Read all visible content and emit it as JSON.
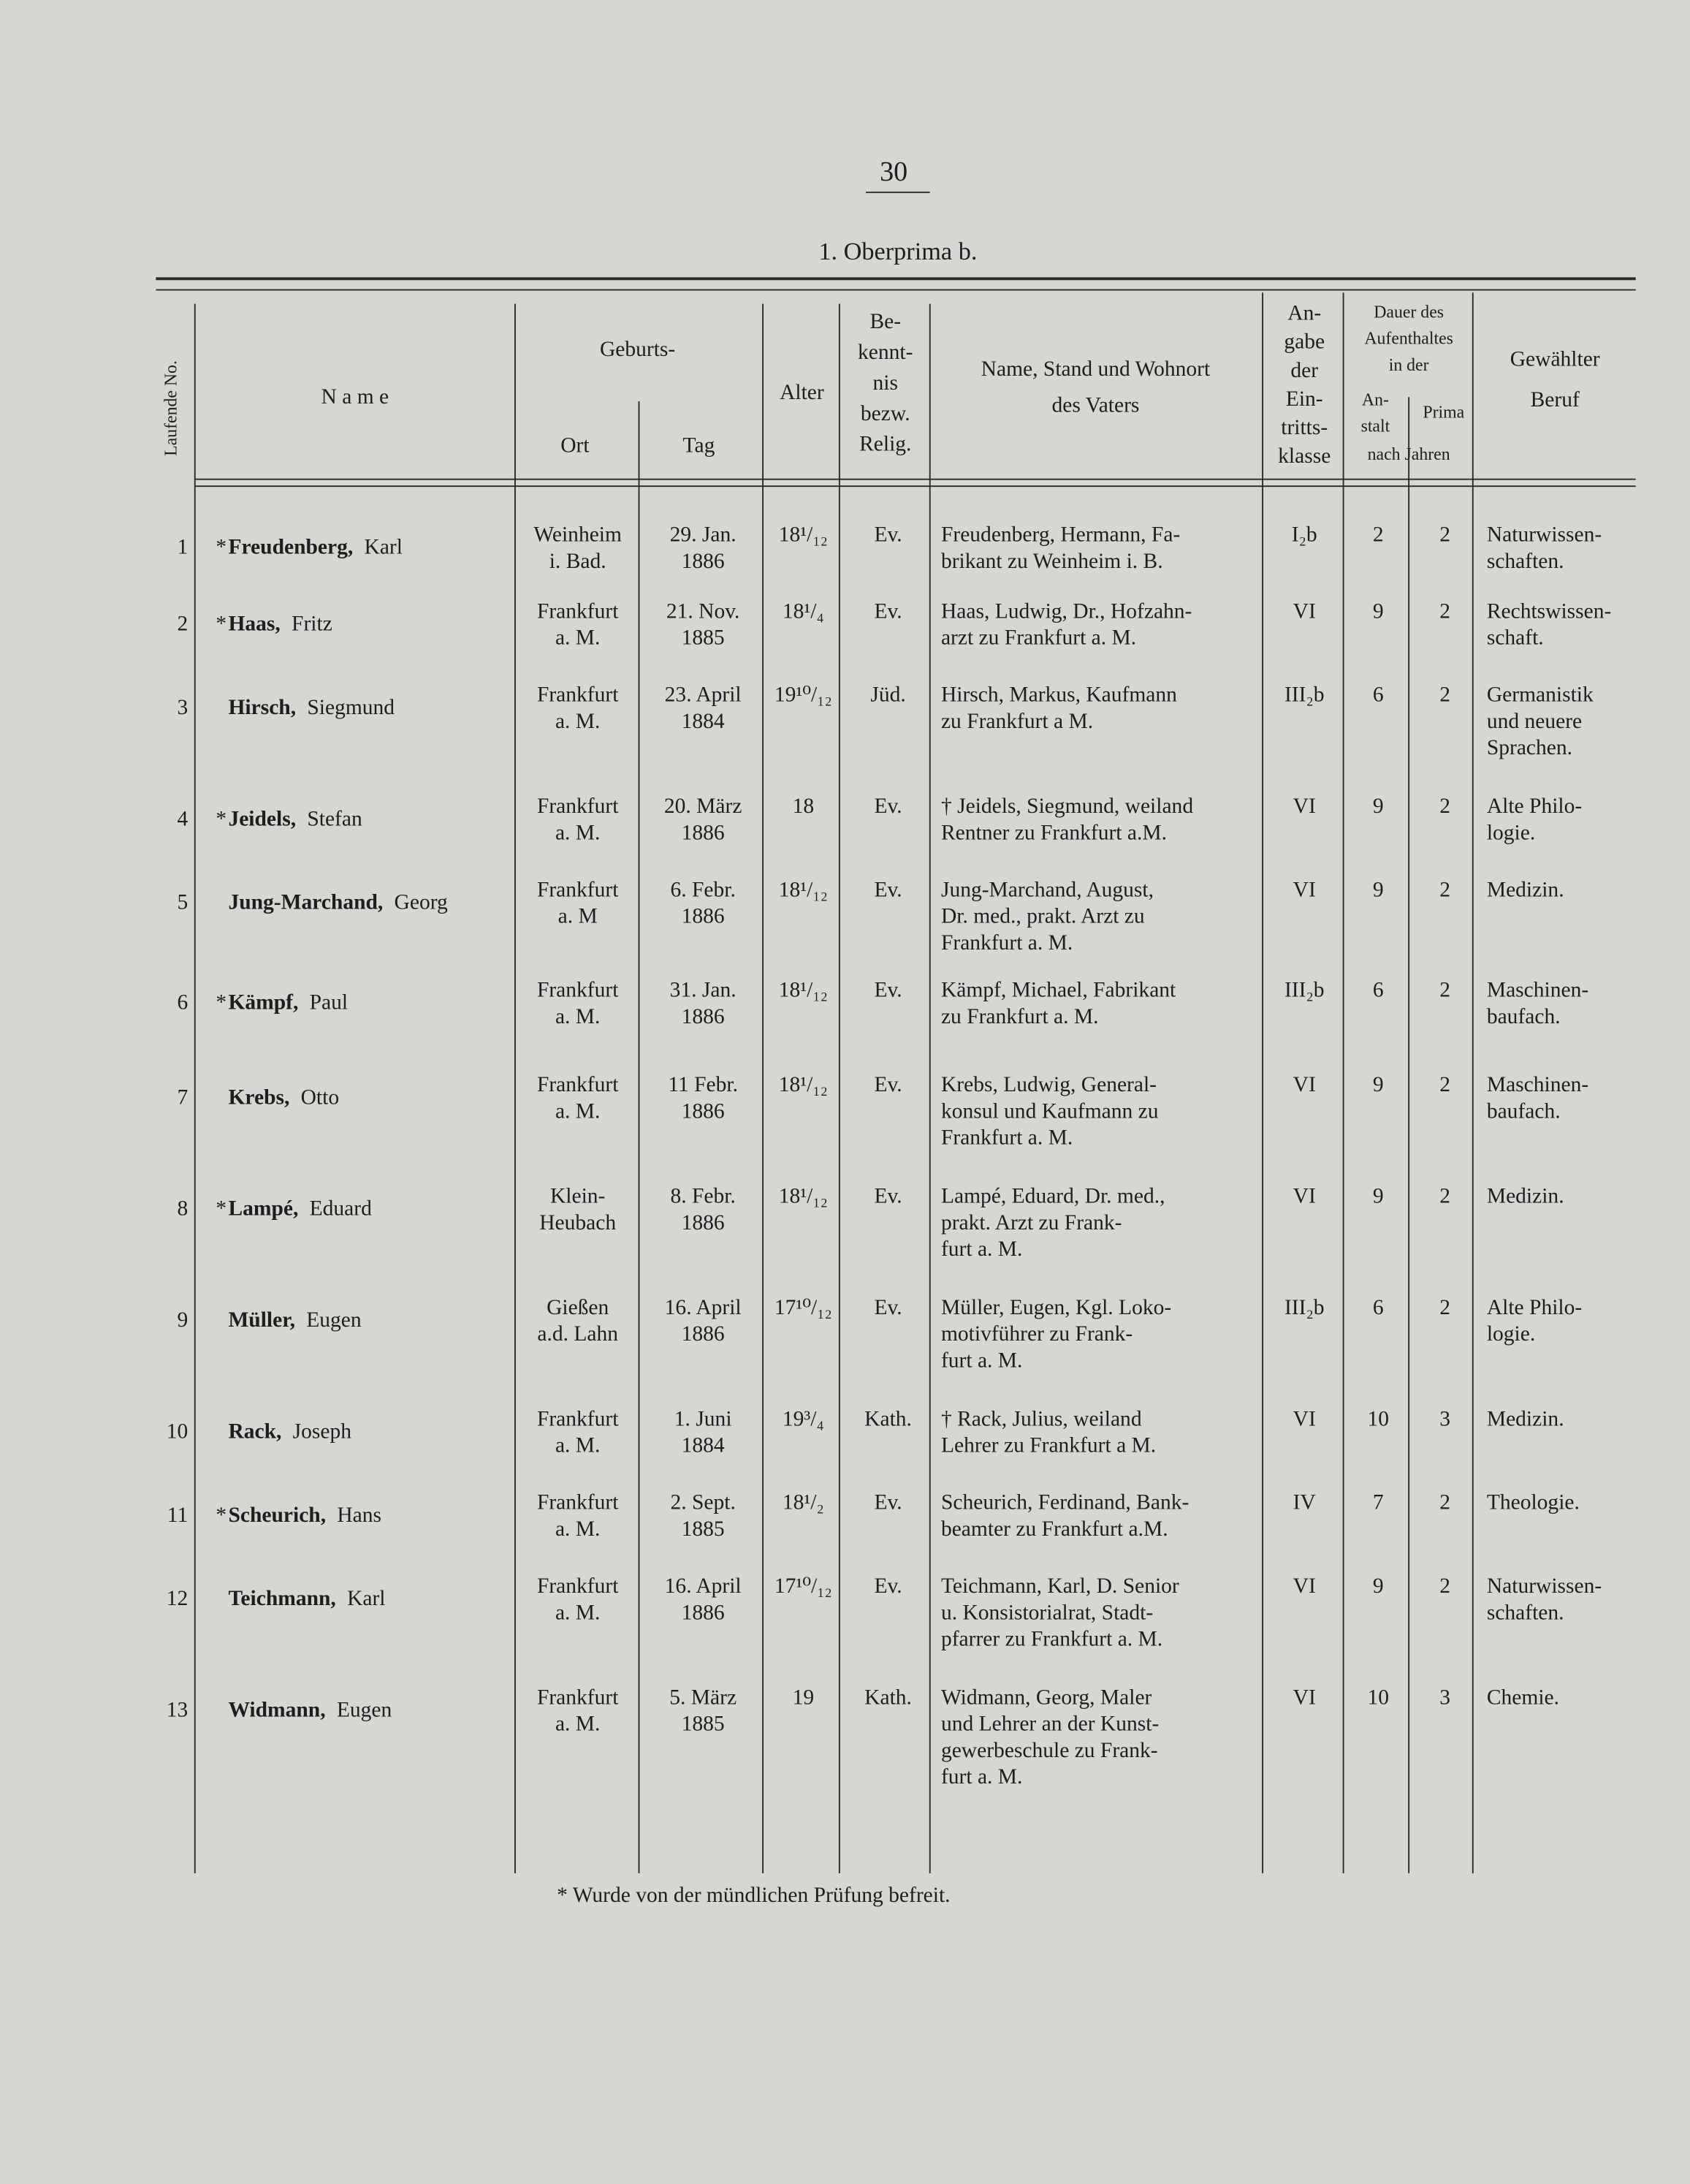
{
  "header": {
    "page_number": "30",
    "title": "1. Oberprima b."
  },
  "table": {
    "headers": {
      "no": "Laufende No.",
      "name": "N a m e",
      "birth": "Geburts-",
      "place": "Ort",
      "day": "Tag",
      "age": "Alter",
      "religion": [
        "Be-",
        "kennt-",
        "nis",
        "bezw.",
        "Relig."
      ],
      "father": [
        "Name, Stand und Wohnort",
        "des Vaters"
      ],
      "entry": [
        "An-",
        "gabe",
        "der",
        "Ein-",
        "tritts-",
        "klasse"
      ],
      "stay": [
        "Dauer des",
        "Aufenthaltes",
        "in der"
      ],
      "school": [
        "An-",
        "stalt"
      ],
      "prima": "Prima",
      "years": "nach Jahren",
      "career": [
        "Gewählter",
        "Beruf"
      ]
    },
    "rows": [
      {
        "no": "1",
        "mark": "*",
        "surname": "Freudenberg,",
        "given": "Karl",
        "place": [
          "Weinheim",
          "i. Bad."
        ],
        "day": [
          "29. Jan.",
          "1886"
        ],
        "age": "18¹/₁₂",
        "religion": "Ev.",
        "father": [
          "Freudenberg, Hermann, Fa-",
          "brikant zu Weinheim i. B."
        ],
        "entry": "I₂b",
        "school": "2",
        "prima": "2",
        "career": [
          "Naturwissen-",
          "schaften."
        ]
      },
      {
        "no": "2",
        "mark": "*",
        "surname": "Haas,",
        "given": "Fritz",
        "place": [
          "Frankfurt",
          "a. M."
        ],
        "day": [
          "21. Nov.",
          "1885"
        ],
        "age": "18¹/₄",
        "religion": "Ev.",
        "father": [
          "Haas, Ludwig, Dr., Hofzahn-",
          "arzt zu Frankfurt a. M."
        ],
        "entry": "VI",
        "school": "9",
        "prima": "2",
        "career": [
          "Rechtswissen-",
          "schaft."
        ]
      },
      {
        "no": "3",
        "surname": "Hirsch,",
        "given": "Siegmund",
        "place": [
          "Frankfurt",
          "a. M."
        ],
        "day": [
          "23. April",
          "1884"
        ],
        "age": "19¹⁰/₁₂",
        "religion": "Jüd.",
        "father": [
          "Hirsch, Markus, Kaufmann",
          "zu Frankfurt a M."
        ],
        "entry": "III₂b",
        "school": "6",
        "prima": "2",
        "career": [
          "Germanistik",
          "und neuere",
          "Sprachen."
        ]
      },
      {
        "no": "4",
        "mark": "*",
        "surname": "Jeidels,",
        "given": "Stefan",
        "place": [
          "Frankfurt",
          "a. M."
        ],
        "day": [
          "20. März",
          "1886"
        ],
        "age": "18",
        "religion": "Ev.",
        "father": [
          "† Jeidels, Siegmund, weiland",
          "Rentner zu Frankfurt a.M."
        ],
        "entry": "VI",
        "school": "9",
        "prima": "2",
        "career": [
          "Alte Philo-",
          "logie."
        ]
      },
      {
        "no": "5",
        "surname": "Jung-Marchand,",
        "given": "Georg",
        "place": [
          "Frankfurt",
          "a. M"
        ],
        "day": [
          "6. Febr.",
          "1886"
        ],
        "age": "18¹/₁₂",
        "religion": "Ev.",
        "father": [
          "Jung-Marchand, August,",
          "Dr. med., prakt. Arzt zu",
          "Frankfurt a. M."
        ],
        "entry": "VI",
        "school": "9",
        "prima": "2",
        "career": [
          "Medizin."
        ]
      },
      {
        "no": "6",
        "mark": "*",
        "surname": "Kämpf,",
        "given": "Paul",
        "place": [
          "Frankfurt",
          "a. M."
        ],
        "day": [
          "31. Jan.",
          "1886"
        ],
        "age": "18¹/₁₂",
        "religion": "Ev.",
        "father": [
          "Kämpf, Michael, Fabrikant",
          "zu Frankfurt a. M."
        ],
        "entry": "III₂b",
        "school": "6",
        "prima": "2",
        "career": [
          "Maschinen-",
          "baufach."
        ]
      },
      {
        "no": "7",
        "surname": "Krebs,",
        "given": "Otto",
        "place": [
          "Frankfurt",
          "a. M."
        ],
        "day": [
          "11 Febr.",
          "1886"
        ],
        "age": "18¹/₁₂",
        "religion": "Ev.",
        "father": [
          "Krebs, Ludwig, General-",
          "konsul und Kaufmann zu",
          "Frankfurt a. M."
        ],
        "entry": "VI",
        "school": "9",
        "prima": "2",
        "career": [
          "Maschinen-",
          "baufach."
        ]
      },
      {
        "no": "8",
        "mark": "*",
        "surname": "Lampé,",
        "given": "Eduard",
        "place": [
          "Klein-",
          "Heubach"
        ],
        "day": [
          "8. Febr.",
          "1886"
        ],
        "age": "18¹/₁₂",
        "religion": "Ev.",
        "father": [
          "Lampé, Eduard, Dr. med.,",
          "prakt. Arzt zu Frank-",
          "furt a. M."
        ],
        "entry": "VI",
        "school": "9",
        "prima": "2",
        "career": [
          "Medizin."
        ]
      },
      {
        "no": "9",
        "surname": "Müller,",
        "given": "Eugen",
        "place": [
          "Gießen",
          "a.d. Lahn"
        ],
        "day": [
          "16. April",
          "1886"
        ],
        "age": "17¹⁰/₁₂",
        "religion": "Ev.",
        "father": [
          "Müller, Eugen, Kgl. Loko-",
          "motivführer zu Frank-",
          "furt a. M."
        ],
        "entry": "III₂b",
        "school": "6",
        "prima": "2",
        "career": [
          "Alte Philo-",
          "logie."
        ]
      },
      {
        "no": "10",
        "surname": "Rack,",
        "given": "Joseph",
        "place": [
          "Frankfurt",
          "a. M."
        ],
        "day": [
          "1. Juni",
          "1884"
        ],
        "age": "19³/₄",
        "religion": "Kath.",
        "father": [
          "† Rack, Julius, weiland",
          "Lehrer zu Frankfurt a M."
        ],
        "entry": "VI",
        "school": "10",
        "prima": "3",
        "career": [
          "Medizin."
        ]
      },
      {
        "no": "11",
        "mark": "*",
        "surname": "Scheurich,",
        "given": "Hans",
        "place": [
          "Frankfurt",
          "a. M."
        ],
        "day": [
          "2. Sept.",
          "1885"
        ],
        "age": "18¹/₂",
        "religion": "Ev.",
        "father": [
          "Scheurich, Ferdinand, Bank-",
          "beamter zu Frankfurt a.M."
        ],
        "entry": "IV",
        "school": "7",
        "prima": "2",
        "career": [
          "Theologie."
        ]
      },
      {
        "no": "12",
        "surname": "Teichmann,",
        "given": "Karl",
        "place": [
          "Frankfurt",
          "a. M."
        ],
        "day": [
          "16. April",
          "1886"
        ],
        "age": "17¹⁰/₁₂",
        "religion": "Ev.",
        "father": [
          "Teichmann, Karl, D. Senior",
          "u. Konsistorialrat, Stadt-",
          "pfarrer zu Frankfurt a. M."
        ],
        "entry": "VI",
        "school": "9",
        "prima": "2",
        "career": [
          "Naturwissen-",
          "schaften."
        ]
      },
      {
        "no": "13",
        "surname": "Widmann,",
        "given": "Eugen",
        "place": [
          "Frankfurt",
          "a. M."
        ],
        "day": [
          "5. März",
          "1885"
        ],
        "age": "19",
        "religion": "Kath.",
        "father": [
          "Widmann, Georg, Maler",
          "und Lehrer an der Kunst-",
          "gewerbeschule zu Frank-",
          "furt a. M."
        ],
        "entry": "VI",
        "school": "10",
        "prima": "3",
        "career": [
          "Chemie."
        ]
      }
    ]
  },
  "footnote": "* Wurde von der mündlichen Prüfung befreit."
}
